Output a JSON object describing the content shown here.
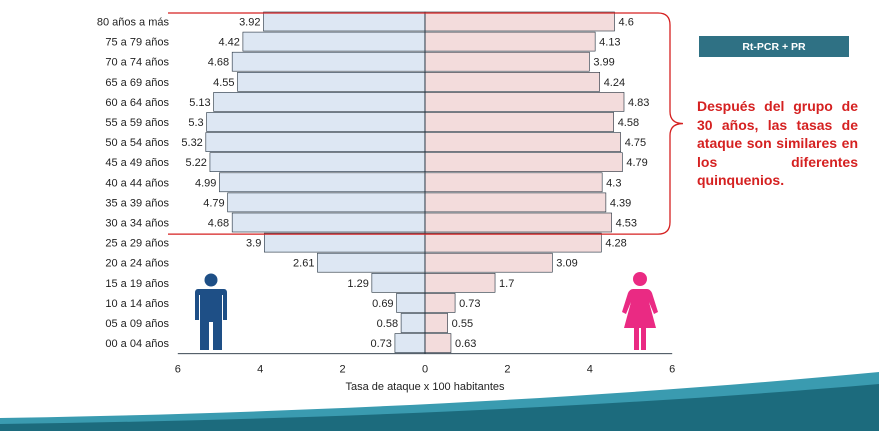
{
  "badge": {
    "label": "Rt-PCR + PR"
  },
  "annotation": {
    "text": "Después del grupo de 30 años, las tasas de ataque son similares en los diferentes quinquenios."
  },
  "colors": {
    "male_fill": "#dde7f3",
    "female_fill": "#f3dcdc",
    "bar_stroke": "#1f2d3a",
    "bracket": "#d52121",
    "male_icon": "#1e4f86",
    "female_icon": "#ea2a83",
    "badge": "#2f7184",
    "wave_dark": "#1c6b7d",
    "wave_light": "#3a9bb0"
  },
  "icons": {
    "male": "man-icon",
    "female": "woman-icon"
  },
  "chart_data": {
    "type": "bar",
    "orientation": "horizontal-population-pyramid",
    "categories": [
      "80 años a más",
      "75 a 79 años",
      "70 a 74 años",
      "65 a 69 años",
      "60 a 64 años",
      "55 a 59 años",
      "50 a 54 años",
      "45 a 49 años",
      "40 a 44 años",
      "35 a 39 años",
      "30 a 34 años",
      "25 a 29 años",
      "20 a 24 años",
      "15 a 19 años",
      "10 a 14 años",
      "05 a 09 años",
      "00 a 04 años"
    ],
    "series": [
      {
        "values": [
          3.92,
          4.42,
          4.68,
          4.55,
          5.13,
          5.3,
          5.32,
          5.22,
          4.99,
          4.79,
          4.68,
          3.9,
          2.61,
          1.29,
          0.69,
          0.58,
          0.73
        ]
      },
      {
        "values": [
          4.6,
          4.13,
          3.99,
          4.24,
          4.83,
          4.58,
          4.75,
          4.79,
          4.3,
          4.39,
          4.53,
          4.28,
          3.09,
          1.7,
          0.73,
          0.55,
          0.63
        ]
      }
    ],
    "xlabel": "Tasa de ataque x 100 habitantes",
    "xlim": [
      -6,
      6
    ],
    "x_ticks": [
      -6,
      -4,
      -2,
      0,
      2,
      4,
      6
    ],
    "x_tick_labels": [
      "6",
      "4",
      "2",
      "0",
      "2",
      "4",
      "6"
    ],
    "grid": false,
    "highlight": {
      "from_category": "80 años a más",
      "to_category": "30 a 34 años"
    }
  }
}
